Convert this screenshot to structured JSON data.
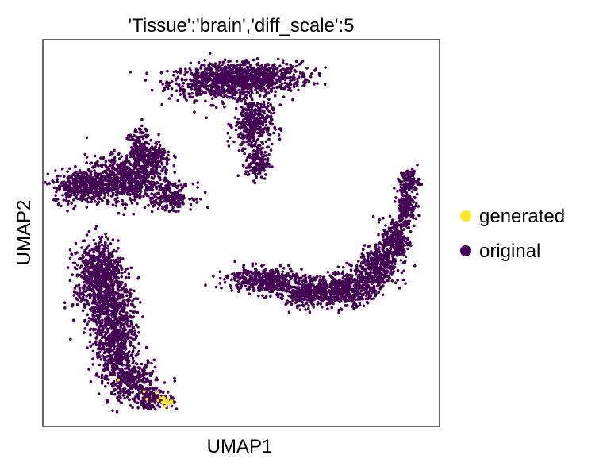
{
  "chart_data": {
    "type": "scatter",
    "title": "'Tissue':'brain','diff_scale':5",
    "xlabel": "UMAP1",
    "ylabel": "UMAP2",
    "xlim": [
      0,
      100
    ],
    "ylim": [
      0,
      100
    ],
    "grid": false,
    "legend_position": "right",
    "series": [
      {
        "name": "generated",
        "color": "#fde725",
        "clusters": [
          {
            "cx": 30.5,
            "cy": 6.5,
            "rx": 1.6,
            "ry": 1.0,
            "n": 26
          }
        ],
        "outliers": [
          [
            19.0,
            12.0
          ],
          [
            25.5,
            9.0
          ],
          [
            26.2,
            7.0
          ]
        ]
      },
      {
        "name": "original",
        "color": "#440154",
        "clusters": [
          {
            "cx": 45.0,
            "cy": 89.0,
            "rx": 11.0,
            "ry": 3.8,
            "n": 700
          },
          {
            "cx": 55.5,
            "cy": 90.5,
            "rx": 10.0,
            "ry": 3.2,
            "n": 450
          },
          {
            "cx": 53.0,
            "cy": 78.0,
            "rx": 4.0,
            "ry": 6.0,
            "n": 380
          },
          {
            "cx": 54.0,
            "cy": 68.0,
            "rx": 2.4,
            "ry": 3.5,
            "n": 140
          },
          {
            "cx": 10.0,
            "cy": 62.0,
            "rx": 6.0,
            "ry": 3.5,
            "n": 380
          },
          {
            "cx": 20.0,
            "cy": 64.0,
            "rx": 7.5,
            "ry": 5.0,
            "n": 620
          },
          {
            "cx": 27.0,
            "cy": 69.0,
            "rx": 4.5,
            "ry": 4.0,
            "n": 280
          },
          {
            "cx": 32.0,
            "cy": 59.5,
            "rx": 5.0,
            "ry": 2.8,
            "n": 200
          },
          {
            "cx": 24.0,
            "cy": 73.5,
            "rx": 2.0,
            "ry": 3.5,
            "n": 70
          },
          {
            "cx": 13.0,
            "cy": 37.0,
            "rx": 4.5,
            "ry": 9.0,
            "n": 420
          },
          {
            "cx": 17.5,
            "cy": 31.0,
            "rx": 4.5,
            "ry": 9.0,
            "n": 520
          },
          {
            "cx": 18.5,
            "cy": 20.0,
            "rx": 4.5,
            "ry": 8.0,
            "n": 440
          },
          {
            "cx": 22.5,
            "cy": 11.5,
            "rx": 5.0,
            "ry": 4.5,
            "n": 300
          },
          {
            "cx": 28.0,
            "cy": 7.0,
            "rx": 4.0,
            "ry": 2.0,
            "n": 140
          },
          {
            "cx": 15.5,
            "cy": 41.5,
            "rx": 4.0,
            "ry": 4.5,
            "n": 200
          },
          {
            "cx": 56.0,
            "cy": 38.0,
            "rx": 8.0,
            "ry": 2.6,
            "n": 420
          },
          {
            "cx": 68.0,
            "cy": 34.5,
            "rx": 7.5,
            "ry": 3.0,
            "n": 440
          },
          {
            "cx": 78.0,
            "cy": 36.0,
            "rx": 5.0,
            "ry": 3.8,
            "n": 360
          },
          {
            "cx": 84.5,
            "cy": 41.0,
            "rx": 3.8,
            "ry": 5.0,
            "n": 340
          },
          {
            "cx": 89.0,
            "cy": 48.0,
            "rx": 2.8,
            "ry": 5.0,
            "n": 240
          },
          {
            "cx": 91.5,
            "cy": 57.0,
            "rx": 2.0,
            "ry": 5.0,
            "n": 200
          },
          {
            "cx": 92.5,
            "cy": 63.5,
            "rx": 2.0,
            "ry": 2.5,
            "n": 90
          }
        ]
      }
    ]
  }
}
